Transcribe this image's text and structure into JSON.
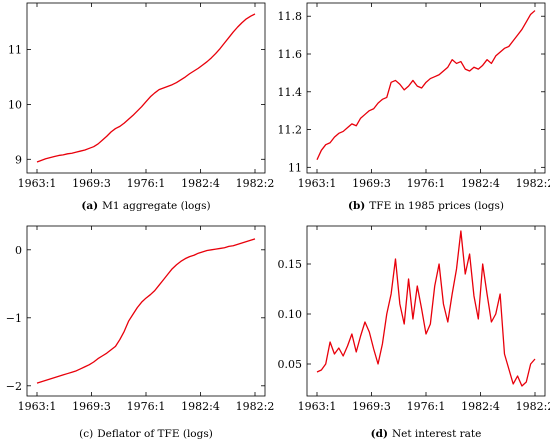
{
  "chart_data": [
    {
      "type": "line",
      "caption_letter": "(a)",
      "caption": "M1 aggregate (logs)",
      "x_ticks": [
        "1963:1",
        "1969:3",
        "1976:1",
        "1982:4",
        "1982:2"
      ],
      "y_ticks": [
        "9",
        "10",
        "11"
      ],
      "ylim": [
        8.75,
        11.85
      ],
      "grid": false,
      "series": [
        {
          "color": "#e8000b",
          "x": [
            0,
            2,
            4,
            6,
            8,
            10,
            12,
            14,
            16,
            18,
            20,
            22,
            24,
            26,
            28,
            30,
            32,
            34,
            36,
            38,
            40,
            42,
            44,
            46,
            48,
            50,
            52,
            54,
            56,
            58,
            60,
            62,
            64,
            66,
            68,
            70,
            72,
            74,
            76,
            78,
            80,
            82,
            84,
            86,
            88,
            90,
            92,
            94,
            96,
            98,
            100
          ],
          "y": [
            8.95,
            8.98,
            9.01,
            9.03,
            9.05,
            9.07,
            9.08,
            9.1,
            9.11,
            9.13,
            9.15,
            9.17,
            9.2,
            9.23,
            9.28,
            9.35,
            9.42,
            9.5,
            9.56,
            9.6,
            9.66,
            9.73,
            9.8,
            9.88,
            9.96,
            10.05,
            10.14,
            10.21,
            10.27,
            10.3,
            10.33,
            10.36,
            10.4,
            10.45,
            10.5,
            10.56,
            10.61,
            10.66,
            10.72,
            10.78,
            10.85,
            10.93,
            11.02,
            11.12,
            11.22,
            11.32,
            11.41,
            11.49,
            11.56,
            11.61,
            11.65
          ]
        }
      ]
    },
    {
      "type": "line",
      "caption_letter": "(b)",
      "caption": "TFE in 1985 prices (logs)",
      "x_ticks": [
        "1963:1",
        "1969:3",
        "1976:1",
        "1982:4",
        "1982:2"
      ],
      "y_ticks": [
        "11",
        "11.2",
        "11.4",
        "11.6",
        "11.8"
      ],
      "ylim": [
        10.97,
        11.87
      ],
      "grid": false,
      "series": [
        {
          "color": "#e8000b",
          "x": [
            0,
            2,
            4,
            6,
            8,
            10,
            12,
            14,
            16,
            18,
            20,
            22,
            24,
            26,
            28,
            30,
            32,
            34,
            36,
            38,
            40,
            42,
            44,
            46,
            48,
            50,
            52,
            54,
            56,
            58,
            60,
            62,
            64,
            66,
            68,
            70,
            72,
            74,
            76,
            78,
            80,
            82,
            84,
            86,
            88,
            90,
            92,
            94,
            96,
            98,
            100
          ],
          "y": [
            11.04,
            11.09,
            11.12,
            11.13,
            11.16,
            11.18,
            11.19,
            11.21,
            11.23,
            11.22,
            11.26,
            11.28,
            11.3,
            11.31,
            11.34,
            11.36,
            11.37,
            11.45,
            11.46,
            11.44,
            11.41,
            11.43,
            11.46,
            11.43,
            11.42,
            11.45,
            11.47,
            11.48,
            11.49,
            11.51,
            11.53,
            11.57,
            11.55,
            11.56,
            11.52,
            11.51,
            11.53,
            11.52,
            11.54,
            11.57,
            11.55,
            11.59,
            11.61,
            11.63,
            11.64,
            11.67,
            11.7,
            11.73,
            11.77,
            11.81,
            11.83
          ]
        }
      ]
    },
    {
      "type": "line",
      "caption_letter": "(c)",
      "caption": "Deflator of TFE (logs)",
      "x_ticks": [
        "1963:1",
        "1969:3",
        "1976:1",
        "1982:4",
        "1982:2"
      ],
      "y_ticks": [
        "−2",
        "−1",
        "0"
      ],
      "ylim": [
        -2.15,
        0.35
      ],
      "grid": false,
      "series": [
        {
          "color": "#e8000b",
          "x": [
            0,
            2,
            4,
            6,
            8,
            10,
            12,
            14,
            16,
            18,
            20,
            22,
            24,
            26,
            28,
            30,
            32,
            34,
            36,
            38,
            40,
            42,
            44,
            46,
            48,
            50,
            52,
            54,
            56,
            58,
            60,
            62,
            64,
            66,
            68,
            70,
            72,
            74,
            76,
            78,
            80,
            82,
            84,
            86,
            88,
            90,
            92,
            94,
            96,
            98,
            100
          ],
          "y": [
            -1.96,
            -1.94,
            -1.92,
            -1.9,
            -1.88,
            -1.86,
            -1.84,
            -1.82,
            -1.8,
            -1.78,
            -1.75,
            -1.72,
            -1.69,
            -1.65,
            -1.6,
            -1.56,
            -1.52,
            -1.47,
            -1.42,
            -1.32,
            -1.2,
            -1.05,
            -0.95,
            -0.85,
            -0.77,
            -0.71,
            -0.66,
            -0.6,
            -0.52,
            -0.44,
            -0.36,
            -0.28,
            -0.22,
            -0.17,
            -0.13,
            -0.1,
            -0.08,
            -0.05,
            -0.03,
            -0.01,
            0.0,
            0.01,
            0.02,
            0.03,
            0.05,
            0.06,
            0.08,
            0.1,
            0.12,
            0.14,
            0.16
          ]
        }
      ]
    },
    {
      "type": "line",
      "caption_letter": "(d)",
      "caption": "Net interest rate",
      "x_ticks": [
        "1963:1",
        "1969:3",
        "1976:1",
        "1982:4",
        "1982:2"
      ],
      "y_ticks": [
        "0.05",
        "0.10",
        "0.15"
      ],
      "ylim": [
        0.018,
        0.188
      ],
      "grid": false,
      "series": [
        {
          "color": "#e8000b",
          "x": [
            0,
            2,
            4,
            6,
            8,
            10,
            12,
            14,
            16,
            18,
            20,
            22,
            24,
            26,
            28,
            30,
            32,
            34,
            36,
            38,
            40,
            42,
            44,
            46,
            48,
            50,
            52,
            54,
            56,
            58,
            60,
            62,
            64,
            66,
            68,
            70,
            72,
            74,
            76,
            78,
            80,
            82,
            84,
            86,
            88,
            90,
            92,
            94,
            96,
            98,
            100
          ],
          "y": [
            0.042,
            0.044,
            0.05,
            0.072,
            0.06,
            0.066,
            0.058,
            0.068,
            0.08,
            0.062,
            0.078,
            0.092,
            0.082,
            0.065,
            0.05,
            0.07,
            0.1,
            0.12,
            0.155,
            0.11,
            0.09,
            0.135,
            0.095,
            0.128,
            0.105,
            0.08,
            0.09,
            0.128,
            0.15,
            0.11,
            0.092,
            0.12,
            0.145,
            0.183,
            0.14,
            0.16,
            0.118,
            0.095,
            0.15,
            0.12,
            0.092,
            0.1,
            0.12,
            0.06,
            0.045,
            0.03,
            0.038,
            0.028,
            0.032,
            0.05,
            0.055
          ]
        }
      ]
    }
  ]
}
